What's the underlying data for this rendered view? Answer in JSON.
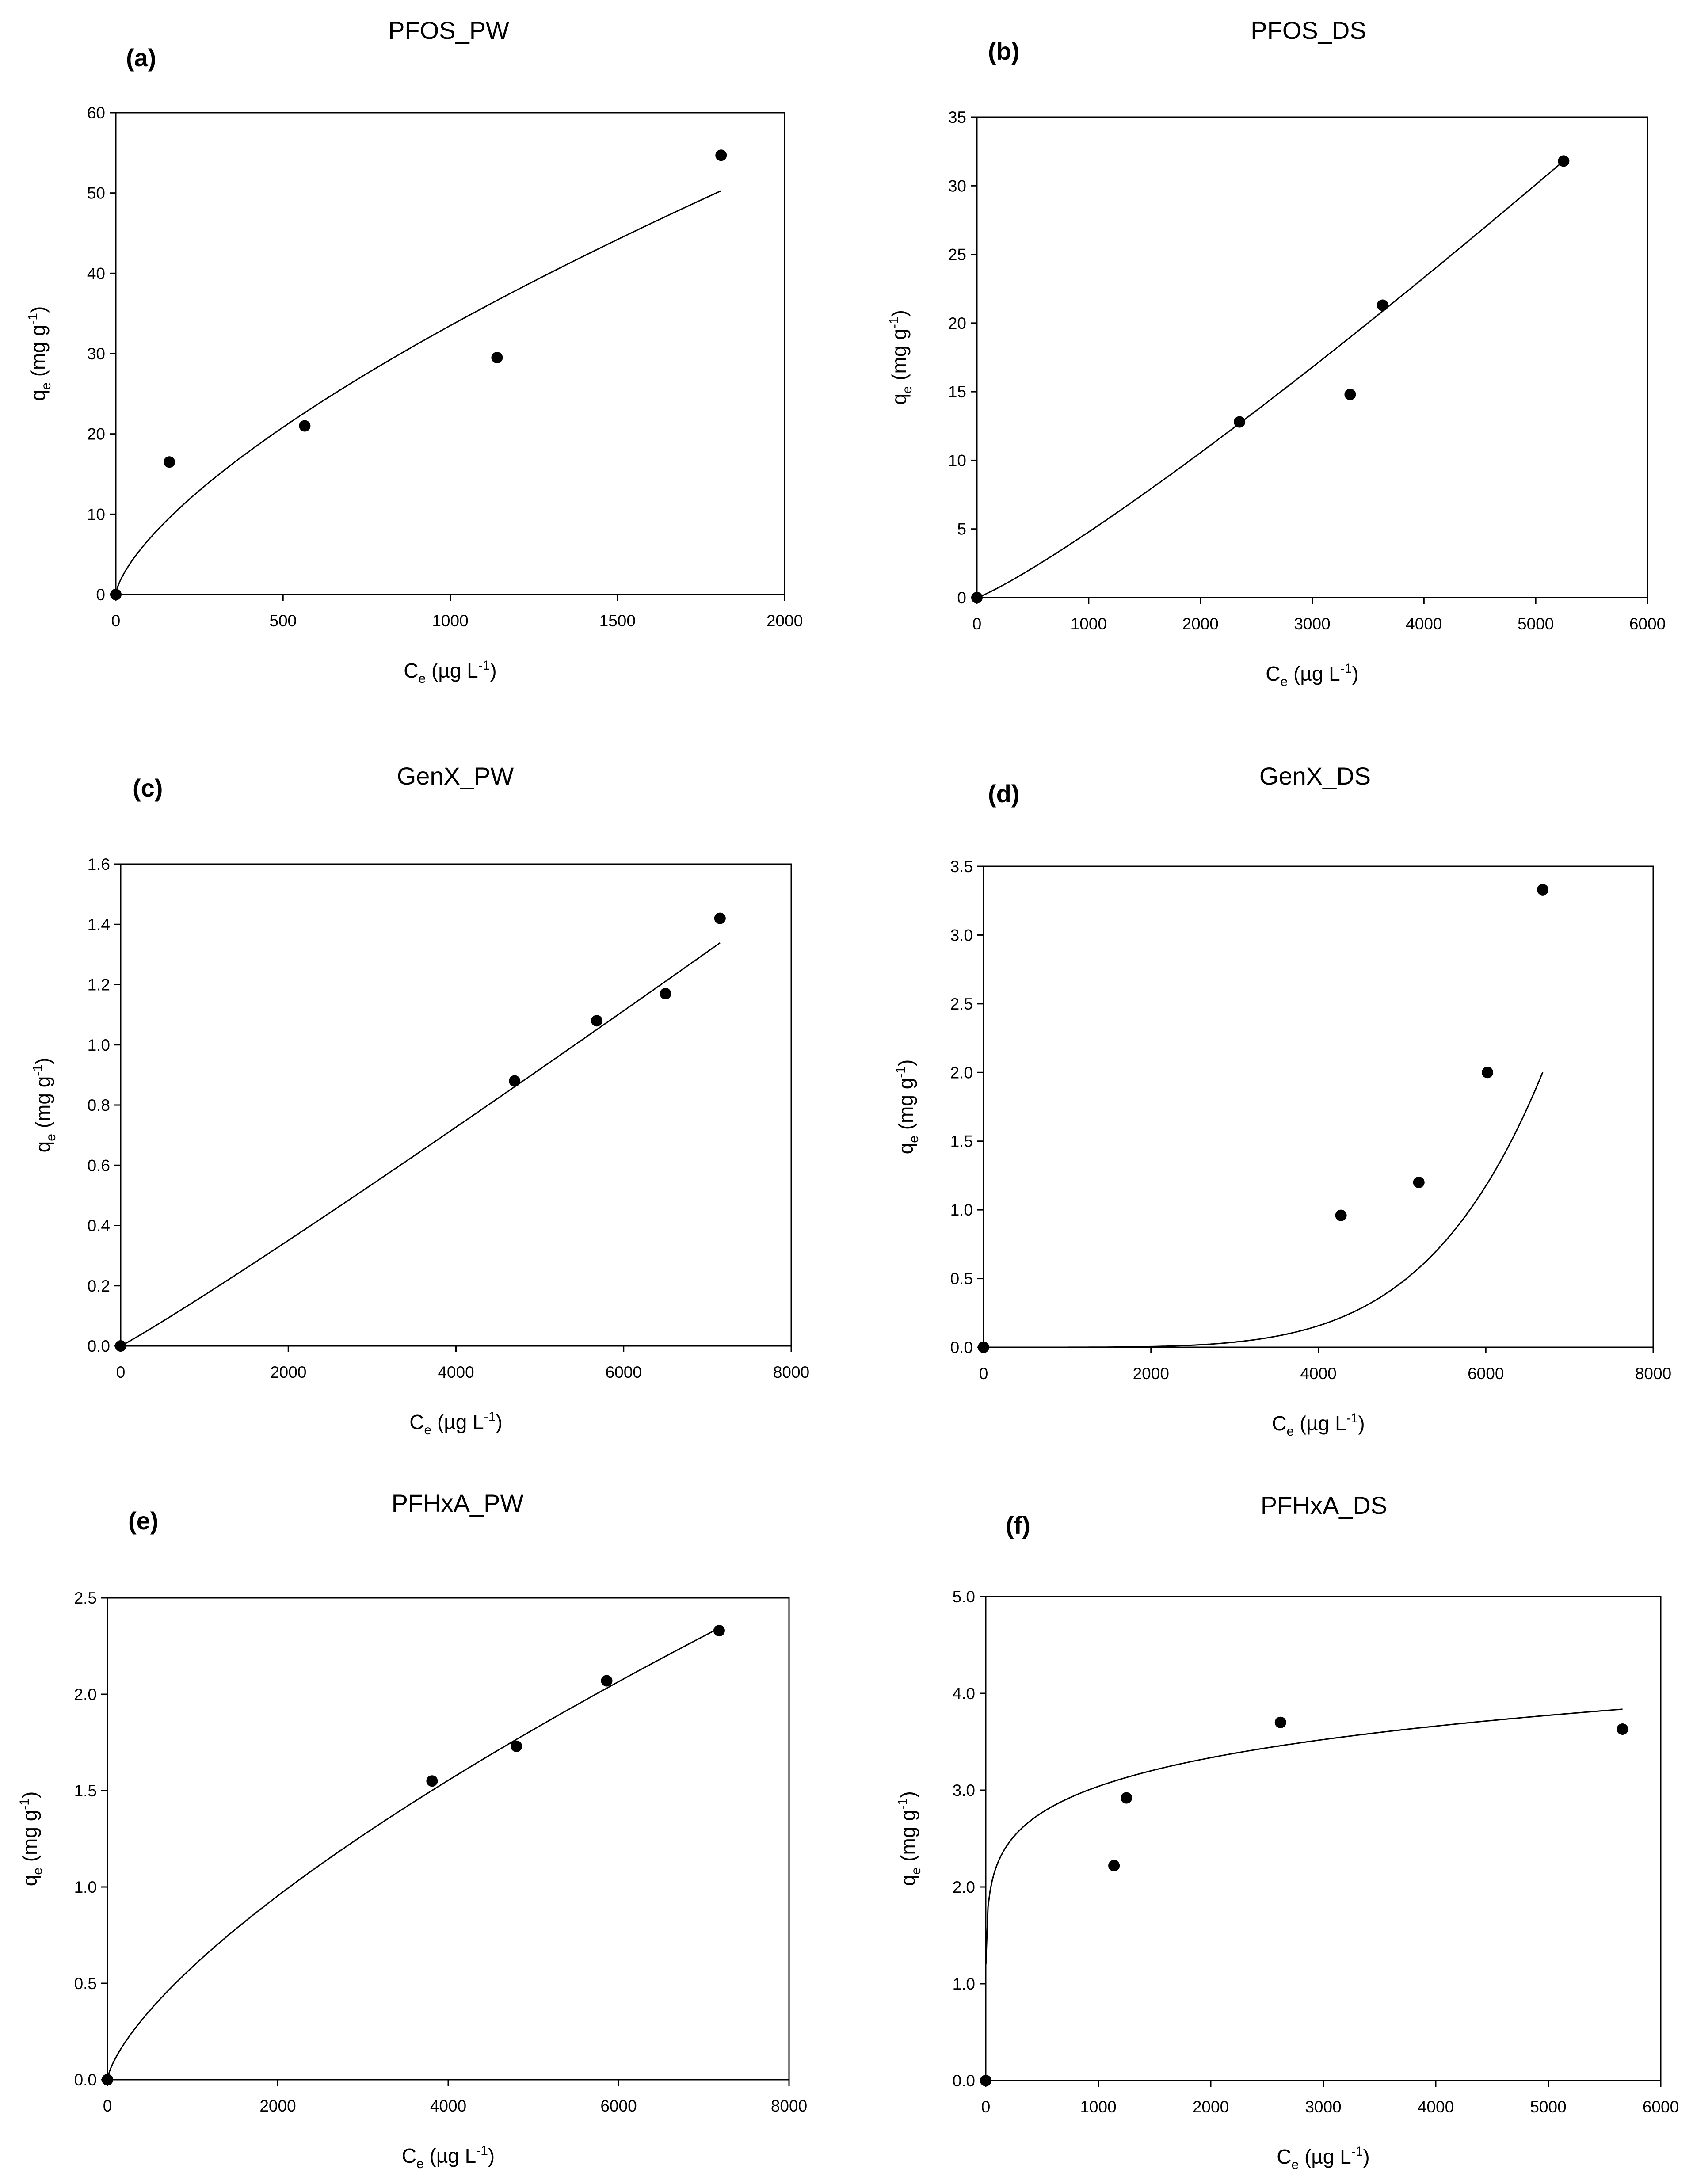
{
  "chart_data": [
    {
      "type": "scatter",
      "panel": "(a)",
      "title": "PFOS_PW",
      "xlabel": {
        "main": "C",
        "sub": "e",
        "unit": " (µg L",
        "sup": "-1",
        "close": ")"
      },
      "ylabel": {
        "main": "q",
        "sub": "e",
        "unit": " (mg g",
        "sup": "-1",
        "close": ")"
      },
      "xlim": [
        0,
        2000
      ],
      "ylim": [
        0,
        60
      ],
      "xticks": [
        0,
        500,
        1000,
        1500,
        2000
      ],
      "xtick_labels": [
        "0",
        "500",
        "1000",
        "1500",
        "2000"
      ],
      "yticks": [
        0,
        10,
        20,
        30,
        40,
        50,
        60
      ],
      "ytick_labels": [
        "0",
        "10",
        "20",
        "30",
        "40",
        "50",
        "60"
      ],
      "points": {
        "x": [
          0,
          160,
          565,
          1140,
          1810
        ],
        "y": [
          0,
          16.5,
          21,
          29.5,
          54.7
        ]
      },
      "fit": {
        "model": "freundlich",
        "K": 0.295,
        "n": 0.685,
        "x_range": [
          0,
          1810
        ]
      }
    },
    {
      "type": "scatter",
      "panel": "(b)",
      "title": "PFOS_DS",
      "xlabel": {
        "main": "C",
        "sub": "e",
        "unit": " (µg L",
        "sup": "-1",
        "close": ")"
      },
      "ylabel": {
        "main": "q",
        "sub": "e",
        "unit": " (mg g",
        "sup": "-1",
        "close": ")"
      },
      "xlim": [
        0,
        6000
      ],
      "ylim": [
        0,
        35
      ],
      "xticks": [
        0,
        1000,
        2000,
        3000,
        4000,
        5000,
        6000
      ],
      "xtick_labels": [
        "0",
        "1000",
        "2000",
        "3000",
        "4000",
        "5000",
        "6000"
      ],
      "yticks": [
        0,
        5,
        10,
        15,
        20,
        25,
        30,
        35
      ],
      "ytick_labels": [
        "0",
        "5",
        "10",
        "15",
        "20",
        "25",
        "30",
        "35"
      ],
      "points": {
        "x": [
          0,
          2350,
          3340,
          3630,
          5250
        ],
        "y": [
          0,
          12.8,
          14.8,
          21.3,
          31.8
        ]
      },
      "fit": {
        "model": "freundlich",
        "K": 0.00178,
        "n": 1.143,
        "x_range": [
          0,
          5250
        ]
      }
    },
    {
      "type": "scatter",
      "panel": "(c)",
      "title": "GenX_PW",
      "xlabel": {
        "main": "C",
        "sub": "e",
        "unit": " (µg L",
        "sup": "-1",
        "close": ")"
      },
      "ylabel": {
        "main": "q",
        "sub": "e",
        "unit": " (mg g",
        "sup": "-1",
        "close": ")"
      },
      "xlim": [
        0,
        8000
      ],
      "ylim": [
        0,
        1.6
      ],
      "xticks": [
        0,
        2000,
        4000,
        6000,
        8000
      ],
      "xtick_labels": [
        "0",
        "2000",
        "4000",
        "6000",
        "8000"
      ],
      "yticks": [
        0,
        0.2,
        0.4,
        0.6,
        0.8,
        1.0,
        1.2,
        1.4,
        1.6
      ],
      "ytick_labels": [
        "0.0",
        "0.2",
        "0.4",
        "0.6",
        "0.8",
        "1.0",
        "1.2",
        "1.4",
        "1.6"
      ],
      "points": {
        "x": [
          0,
          4700,
          5680,
          6500,
          7150
        ],
        "y": [
          0,
          0.88,
          1.08,
          1.17,
          1.42
        ]
      },
      "fit": {
        "model": "freundlich",
        "K": 0.000118,
        "n": 1.052,
        "x_range": [
          0,
          7150
        ]
      }
    },
    {
      "type": "scatter",
      "panel": "(d)",
      "title": "GenX_DS",
      "xlabel": {
        "main": "C",
        "sub": "e",
        "unit": " (µg L",
        "sup": "-1",
        "close": ")"
      },
      "ylabel": {
        "main": "q",
        "sub": "e",
        "unit": " (mg g",
        "sup": "-1",
        "close": ")"
      },
      "xlim": [
        0,
        8000
      ],
      "ylim": [
        0,
        3.5
      ],
      "xticks": [
        0,
        2000,
        4000,
        6000,
        8000
      ],
      "xtick_labels": [
        "0",
        "2000",
        "4000",
        "6000",
        "8000"
      ],
      "yticks": [
        0,
        0.5,
        1.0,
        1.5,
        2.0,
        2.5,
        3.0,
        3.5
      ],
      "ytick_labels": [
        "0.0",
        "0.5",
        "1.0",
        "1.5",
        "2.0",
        "2.5",
        "3.0",
        "3.5"
      ],
      "points": {
        "x": [
          0,
          4270,
          5200,
          6020,
          6680
        ],
        "y": [
          0,
          0.96,
          1.2,
          2.0,
          3.33
        ]
      },
      "fit": {
        "model": "freundlich",
        "K": 1.96e-19,
        "n": 4.97,
        "x_range": [
          1000,
          6680
        ]
      }
    },
    {
      "type": "scatter",
      "panel": "(e)",
      "title": "PFHxA_PW",
      "xlabel": {
        "main": "C",
        "sub": "e",
        "unit": " (µg L",
        "sup": "-1",
        "close": ")"
      },
      "ylabel": {
        "main": "q",
        "sub": "e",
        "unit": " (mg g",
        "sup": "-1",
        "close": ")"
      },
      "xlim": [
        0,
        8000
      ],
      "ylim": [
        0,
        2.5
      ],
      "xticks": [
        0,
        2000,
        4000,
        6000,
        8000
      ],
      "xtick_labels": [
        "0",
        "2000",
        "4000",
        "6000",
        "8000"
      ],
      "yticks": [
        0,
        0.5,
        1.0,
        1.5,
        2.0,
        2.5
      ],
      "ytick_labels": [
        "0.0",
        "0.5",
        "1.0",
        "1.5",
        "2.0",
        "2.5"
      ],
      "points": {
        "x": [
          0,
          3810,
          4800,
          5860,
          7180
        ],
        "y": [
          0,
          1.55,
          1.73,
          2.07,
          2.33
        ]
      },
      "fit": {
        "model": "freundlich",
        "K": 0.00456,
        "n": 0.703,
        "x_range": [
          0,
          7180
        ]
      }
    },
    {
      "type": "scatter",
      "panel": "(f)",
      "title": "PFHxA_DS",
      "xlabel": {
        "main": "C",
        "sub": "e",
        "unit": " (µg L",
        "sup": "-1",
        "close": ")"
      },
      "ylabel": {
        "main": "q",
        "sub": "e",
        "unit": " (mg g",
        "sup": "-1",
        "close": ")"
      },
      "xlim": [
        0,
        6000
      ],
      "ylim": [
        0,
        5.0
      ],
      "xticks": [
        0,
        1000,
        2000,
        3000,
        4000,
        5000,
        6000
      ],
      "xtick_labels": [
        "0",
        "1000",
        "2000",
        "3000",
        "4000",
        "5000",
        "6000"
      ],
      "yticks": [
        0,
        1.0,
        2.0,
        3.0,
        4.0,
        5.0
      ],
      "ytick_labels": [
        "0.0",
        "1.0",
        "2.0",
        "3.0",
        "4.0",
        "5.0"
      ],
      "points": {
        "x": [
          0,
          1140,
          1250,
          2620,
          5660
        ],
        "y": [
          0,
          2.22,
          2.92,
          3.7,
          3.63
        ]
      },
      "fit": {
        "model": "freundlich",
        "K": 1.2,
        "n": 0.1345,
        "x_range": [
          1,
          5660
        ]
      }
    }
  ]
}
